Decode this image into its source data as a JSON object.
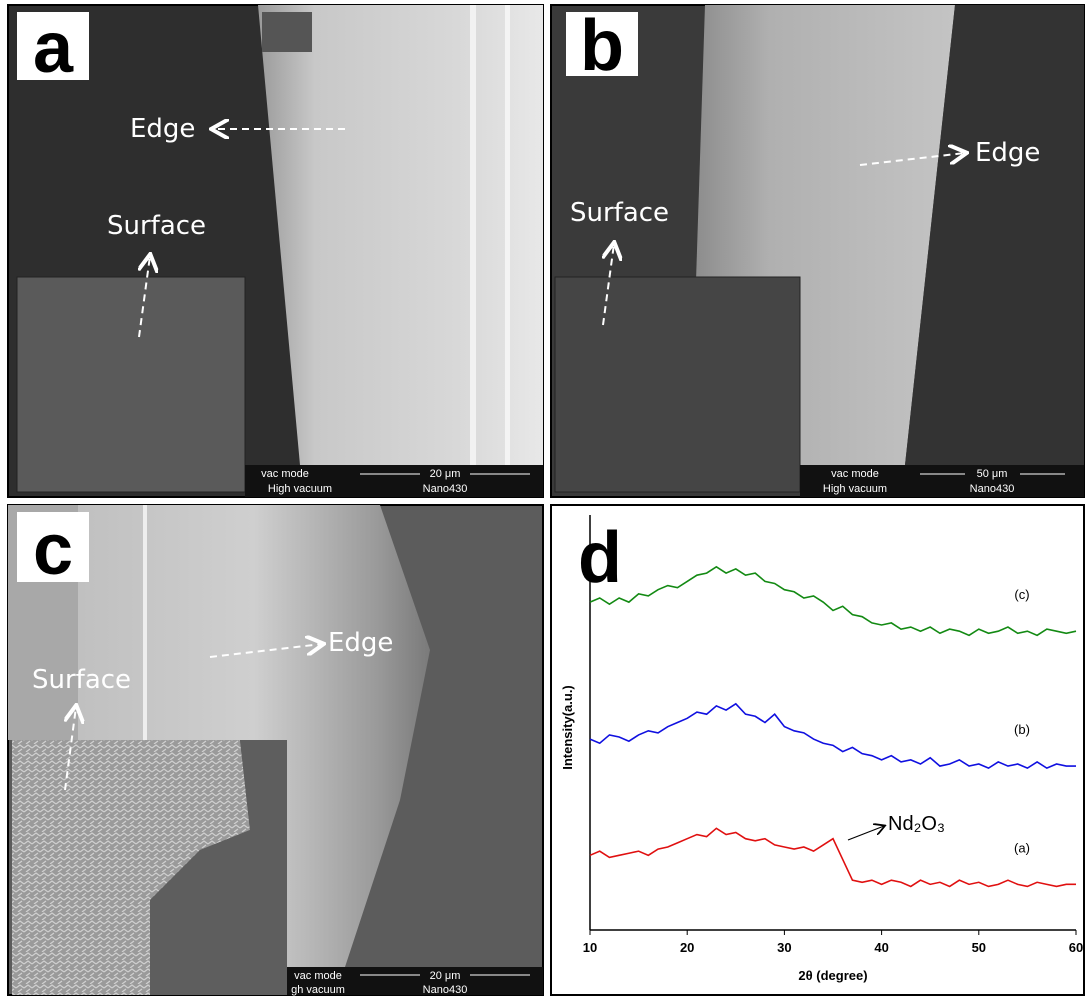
{
  "panels": [
    {
      "label": "a",
      "annotations": [
        "Edge",
        "Surface"
      ],
      "info": [
        "vac mode",
        "High vacuum",
        "20 μm",
        "Nano430"
      ]
    },
    {
      "label": "b",
      "annotations": [
        "Edge",
        "Surface"
      ],
      "info": [
        "vac mode",
        "High vacuum",
        "50 μm",
        "Nano430"
      ]
    },
    {
      "label": "c",
      "annotations": [
        "Surface",
        "Edge"
      ],
      "info": [
        "vac mode",
        "gh vacuum",
        "20 μm",
        "Nano430"
      ]
    },
    {
      "label": "d"
    }
  ],
  "chart_data": {
    "type": "line",
    "x_label": "2θ (degree)",
    "y_label": "Intensity(a.u.)",
    "annotation": "Nd₂O₃",
    "x": [
      10,
      11,
      12,
      13,
      14,
      15,
      16,
      17,
      18,
      19,
      20,
      21,
      22,
      23,
      24,
      25,
      26,
      27,
      28,
      29,
      30,
      31,
      32,
      33,
      34,
      35,
      36,
      37,
      38,
      39,
      40,
      41,
      42,
      43,
      44,
      45,
      46,
      47,
      48,
      49,
      50,
      51,
      52,
      53,
      54,
      55,
      56,
      57,
      58,
      59,
      60
    ],
    "series": [
      {
        "name": "(c)",
        "color": "#138a13",
        "values": [
          79,
          80,
          78.5,
          80,
          79,
          81,
          80.5,
          82,
          83,
          82.5,
          84,
          85.5,
          86,
          87.5,
          86,
          87,
          85.5,
          86,
          84,
          83.5,
          82,
          81.5,
          80,
          80.5,
          79,
          77,
          78,
          76,
          75.5,
          74,
          73.5,
          74,
          72.5,
          73,
          72,
          73,
          71.5,
          72.5,
          72,
          71,
          72.5,
          71.5,
          72,
          73,
          71.5,
          72,
          71,
          72.5,
          72,
          71.5,
          72
        ]
      },
      {
        "name": "(b)",
        "color": "#1010e0",
        "values": [
          46,
          45,
          47,
          46.5,
          45.5,
          47,
          48,
          47.5,
          49,
          50,
          51,
          52.5,
          52,
          54,
          53,
          54.5,
          52,
          51.5,
          50,
          52,
          49,
          48,
          47.5,
          46,
          45,
          44.5,
          43,
          44,
          42.5,
          42,
          41,
          42,
          40.5,
          41,
          40,
          41.5,
          39.5,
          40,
          41,
          39.5,
          40,
          39,
          40.5,
          39.5,
          40,
          39,
          40.5,
          39,
          40,
          39.5,
          39.5
        ]
      },
      {
        "name": "(a)",
        "color": "#e01010",
        "values": [
          18,
          19,
          17.5,
          18,
          18.5,
          19,
          18,
          19.5,
          20,
          21,
          22,
          23,
          22.5,
          24.5,
          23,
          23.5,
          22,
          21.5,
          22,
          20.5,
          20,
          19.5,
          20,
          19,
          20.5,
          22,
          17,
          12,
          11.5,
          12,
          11,
          12,
          11.5,
          10.5,
          12,
          11,
          11.5,
          10.5,
          12,
          11,
          11.5,
          10.5,
          11,
          12,
          11,
          10.5,
          11.5,
          11,
          10.5,
          11,
          11
        ]
      }
    ],
    "xlim": [
      10,
      60
    ],
    "xticks": [
      10,
      20,
      30,
      40,
      50,
      60
    ],
    "ylim": [
      0,
      100
    ]
  }
}
